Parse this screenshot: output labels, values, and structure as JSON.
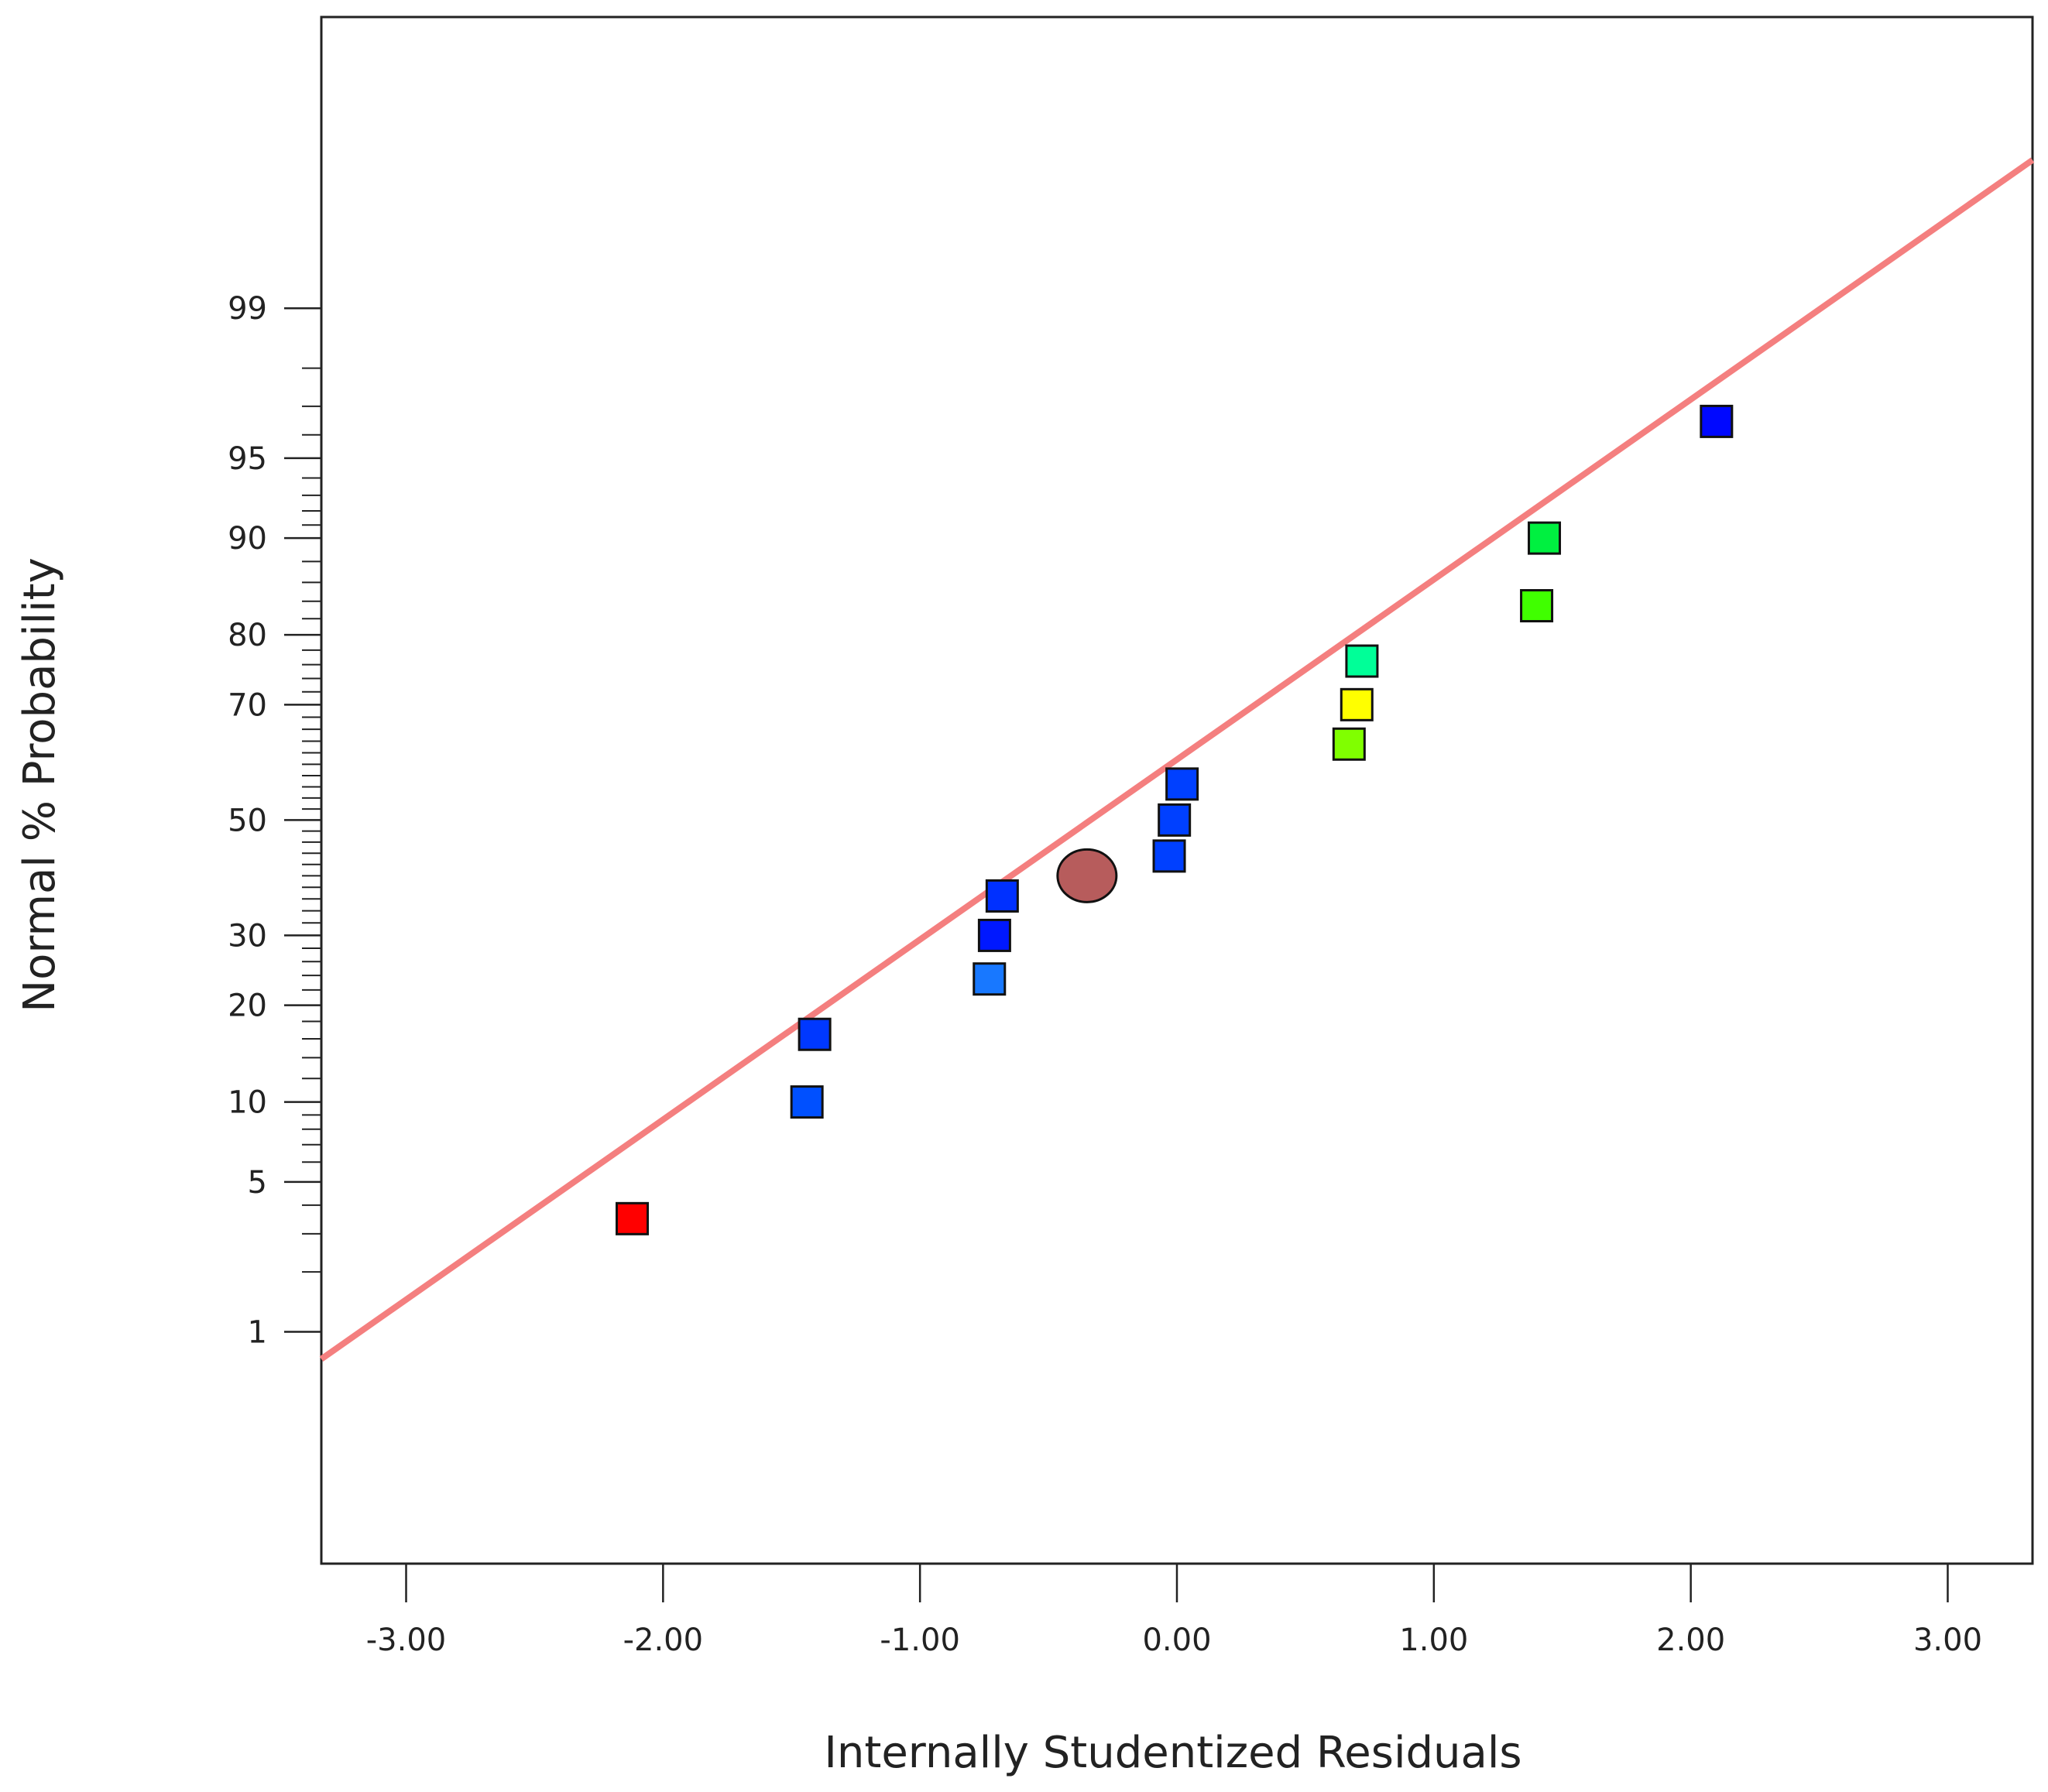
{
  "chart_data": {
    "type": "scatter",
    "title": "",
    "xlabel": "Internally Studentized Residuals",
    "ylabel": "Normal % Probability",
    "xlim": [
      -3.33,
      3.33
    ],
    "ylim_z": [
      -3.38,
      3.65
    ],
    "x_ticks": [
      {
        "value": -3,
        "label": "-3.00"
      },
      {
        "value": -2,
        "label": "-2.00"
      },
      {
        "value": -1,
        "label": "-1.00"
      },
      {
        "value": 0,
        "label": "0.00"
      },
      {
        "value": 1,
        "label": "1.00"
      },
      {
        "value": 2,
        "label": "2.00"
      },
      {
        "value": 3,
        "label": "3.00"
      }
    ],
    "y_major_ticks": [
      {
        "value": 1,
        "label": "1"
      },
      {
        "value": 5,
        "label": "5"
      },
      {
        "value": 10,
        "label": "10"
      },
      {
        "value": 20,
        "label": "20"
      },
      {
        "value": 30,
        "label": "30"
      },
      {
        "value": 50,
        "label": "50"
      },
      {
        "value": 70,
        "label": "70"
      },
      {
        "value": 80,
        "label": "80"
      },
      {
        "value": 90,
        "label": "90"
      },
      {
        "value": 95,
        "label": "95"
      },
      {
        "value": 99,
        "label": "99"
      }
    ],
    "y_minor_ticks": [
      2,
      3,
      4,
      6,
      7,
      8,
      9,
      12,
      14,
      16,
      18,
      22,
      24,
      26,
      28,
      32,
      34,
      36,
      38,
      40,
      42,
      44,
      46,
      48,
      52,
      54,
      56,
      58,
      60,
      62,
      64,
      66,
      68,
      72,
      74,
      76,
      78,
      82,
      84,
      86,
      88,
      91,
      92,
      93,
      94,
      96,
      97,
      98
    ],
    "fit_line": {
      "x": [
        -3.33,
        3.33
      ],
      "y_z": [
        -2.45,
        3.0
      ],
      "color": "#f47f7f"
    },
    "points": [
      {
        "x": -2.12,
        "y": 3.5,
        "color": "#ff0000"
      },
      {
        "x": -1.44,
        "y": 10.0,
        "color": "#0050ff"
      },
      {
        "x": -1.41,
        "y": 16.5,
        "color": "#0038ff"
      },
      {
        "x": -0.73,
        "y": 23.5,
        "color": "#1878ff"
      },
      {
        "x": -0.71,
        "y": 30.0,
        "color": "#0018ff"
      },
      {
        "x": -0.68,
        "y": 36.5,
        "color": "#0030ff"
      },
      {
        "x": -0.03,
        "y": 43.5,
        "color": "#0040ff"
      },
      {
        "x": -0.01,
        "y": 50.0,
        "color": "#0040ff"
      },
      {
        "x": 0.02,
        "y": 56.5,
        "color": "#0040ff"
      },
      {
        "x": 0.67,
        "y": 63.5,
        "color": "#80ff00"
      },
      {
        "x": 0.7,
        "y": 70.0,
        "color": "#ffff00"
      },
      {
        "x": 0.72,
        "y": 76.5,
        "color": "#00ff98"
      },
      {
        "x": 1.4,
        "y": 83.5,
        "color": "#40ff00"
      },
      {
        "x": 1.43,
        "y": 90.0,
        "color": "#00f040"
      },
      {
        "x": 2.1,
        "y": 96.5,
        "color": "#0008ff"
      }
    ],
    "center_point": {
      "x": -0.35,
      "y": 40.0,
      "color": "#b75c5c"
    }
  }
}
